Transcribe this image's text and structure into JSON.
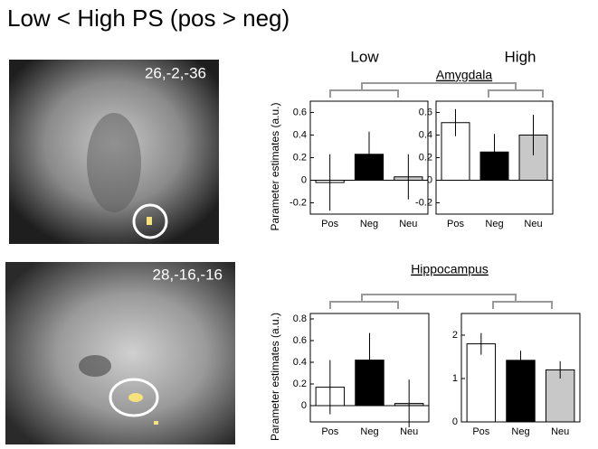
{
  "title": "Low < High PS (pos > neg)",
  "column_labels": [
    "Low",
    "High"
  ],
  "regions": [
    "Amygdala",
    "Hippocampus"
  ],
  "images": [
    {
      "label": "26,-2,-36"
    },
    {
      "label": "28,-16,-16"
    }
  ],
  "chart_data": [
    {
      "type": "bar",
      "ylabel": "Parameter estimates (a.u.)",
      "categories": [
        "Pos",
        "Neg",
        "Neu"
      ],
      "values": [
        -0.02,
        0.23,
        0.03
      ],
      "errors": [
        0.25,
        0.2,
        0.2
      ],
      "colors": [
        "#ffffff",
        "#000000",
        "#c8c8c8"
      ],
      "ylim": [
        -0.3,
        0.7
      ],
      "yticks": [
        -0.2,
        0,
        0.2,
        0.4,
        0.6
      ]
    },
    {
      "type": "bar",
      "categories": [
        "Pos",
        "Neg",
        "Neu"
      ],
      "values": [
        0.51,
        0.25,
        0.4
      ],
      "errors": [
        0.12,
        0.16,
        0.18
      ],
      "colors": [
        "#ffffff",
        "#000000",
        "#c8c8c8"
      ],
      "ylim": [
        -0.3,
        0.7
      ],
      "yticks": [
        -0.2,
        0,
        0.2,
        0.4,
        0.6
      ]
    },
    {
      "type": "bar",
      "ylabel": "Parameter estimates (a.u.)",
      "categories": [
        "Pos",
        "Neg",
        "Neu"
      ],
      "values": [
        0.17,
        0.42,
        0.02
      ],
      "errors": [
        0.25,
        0.25,
        0.22
      ],
      "colors": [
        "#ffffff",
        "#000000",
        "#c8c8c8"
      ],
      "ylim": [
        -0.15,
        0.85
      ],
      "yticks": [
        0,
        0.2,
        0.4,
        0.6,
        0.8
      ]
    },
    {
      "type": "bar",
      "categories": [
        "Pos",
        "Neg",
        "Neu"
      ],
      "values": [
        1.8,
        1.42,
        1.2
      ],
      "errors": [
        0.25,
        0.22,
        0.2
      ],
      "colors": [
        "#ffffff",
        "#000000",
        "#c8c8c8"
      ],
      "ylim": [
        0,
        2.5
      ],
      "yticks": [
        0,
        1,
        2
      ]
    }
  ]
}
